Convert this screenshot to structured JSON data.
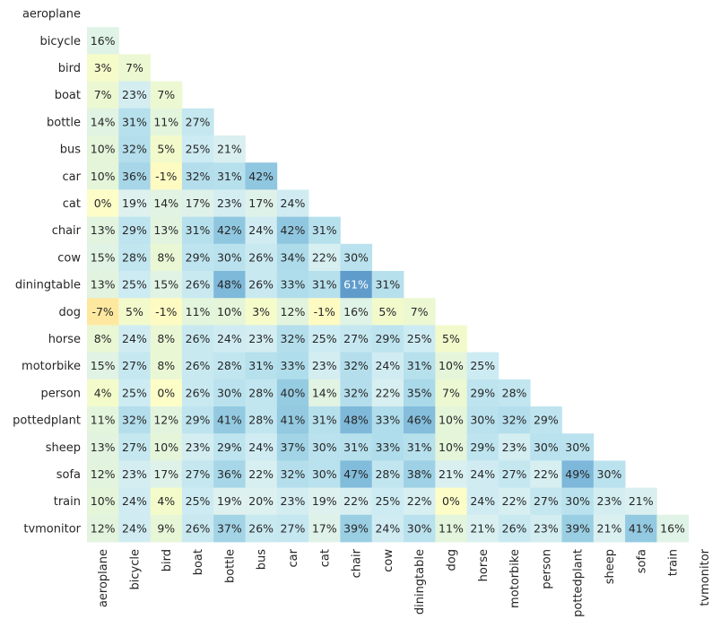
{
  "chart_data": {
    "type": "heatmap",
    "labels": [
      "aeroplane",
      "bicycle",
      "bird",
      "boat",
      "bottle",
      "bus",
      "car",
      "cat",
      "chair",
      "cow",
      "diningtable",
      "dog",
      "horse",
      "motorbike",
      "person",
      "pottedplant",
      "sheep",
      "sofa",
      "train",
      "tvmonitor"
    ],
    "value_format": "percent",
    "triangle": "lower",
    "colormap": "yellow-green-blue",
    "values": [
      [],
      [
        16
      ],
      [
        3,
        7
      ],
      [
        7,
        23,
        7
      ],
      [
        14,
        31,
        11,
        27
      ],
      [
        10,
        32,
        5,
        25,
        21
      ],
      [
        10,
        36,
        -1,
        32,
        31,
        42
      ],
      [
        0,
        19,
        14,
        17,
        23,
        17,
        24
      ],
      [
        13,
        29,
        13,
        31,
        42,
        24,
        42,
        31
      ],
      [
        15,
        28,
        8,
        29,
        30,
        26,
        34,
        22,
        30
      ],
      [
        13,
        25,
        15,
        26,
        48,
        26,
        33,
        31,
        61,
        31
      ],
      [
        -7,
        5,
        -1,
        11,
        10,
        3,
        12,
        -1,
        16,
        5,
        7
      ],
      [
        8,
        24,
        8,
        26,
        24,
        23,
        32,
        25,
        27,
        29,
        25,
        5
      ],
      [
        15,
        27,
        8,
        26,
        28,
        31,
        33,
        23,
        32,
        24,
        31,
        10,
        25
      ],
      [
        4,
        25,
        0,
        26,
        30,
        28,
        40,
        14,
        32,
        22,
        35,
        7,
        29,
        28
      ],
      [
        11,
        32,
        12,
        29,
        41,
        28,
        41,
        31,
        48,
        33,
        46,
        10,
        30,
        32,
        29
      ],
      [
        13,
        27,
        10,
        23,
        29,
        24,
        37,
        30,
        31,
        33,
        31,
        10,
        29,
        23,
        30,
        30
      ],
      [
        12,
        23,
        17,
        27,
        36,
        22,
        32,
        30,
        47,
        28,
        38,
        21,
        24,
        27,
        22,
        49,
        30
      ],
      [
        10,
        24,
        4,
        25,
        19,
        20,
        23,
        19,
        22,
        25,
        22,
        0,
        24,
        22,
        27,
        30,
        23,
        21
      ],
      [
        12,
        24,
        9,
        26,
        37,
        26,
        27,
        17,
        39,
        24,
        30,
        11,
        21,
        26,
        23,
        39,
        21,
        41,
        16
      ]
    ]
  }
}
